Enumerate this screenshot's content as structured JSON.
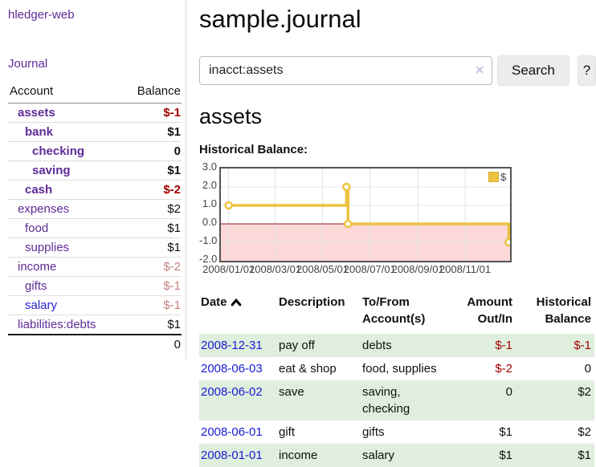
{
  "app": {
    "title": "hledger-web"
  },
  "sidebar": {
    "nav": {
      "journal": "Journal"
    },
    "table": {
      "account_header": "Account",
      "balance_header": "Balance"
    },
    "accounts": [
      {
        "name": "assets",
        "level": 1,
        "bold": true,
        "balance": "$-1",
        "style": "neg"
      },
      {
        "name": "bank",
        "level": 2,
        "bold": true,
        "balance": "$1",
        "style": "plain"
      },
      {
        "name": "checking",
        "level": 3,
        "bold": true,
        "balance": "0",
        "style": "plain"
      },
      {
        "name": "saving",
        "level": 3,
        "bold": true,
        "balance": "$1",
        "style": "plain"
      },
      {
        "name": "cash",
        "level": 2,
        "bold": true,
        "balance": "$-2",
        "style": "neg"
      },
      {
        "name": "expenses",
        "level": 1,
        "bold": false,
        "balance": "$2",
        "style": "plain"
      },
      {
        "name": "food",
        "level": 2,
        "bold": false,
        "balance": "$1",
        "style": "plain"
      },
      {
        "name": "supplies",
        "level": 2,
        "bold": false,
        "balance": "$1",
        "style": "plain"
      },
      {
        "name": "income",
        "level": 1,
        "bold": false,
        "balance": "$-2",
        "style": "rose"
      },
      {
        "name": "gifts",
        "level": 2,
        "bold": false,
        "balance": "$-1",
        "style": "rose"
      },
      {
        "name": "salary",
        "level": 2,
        "bold": false,
        "blue": true,
        "balance": "$-1",
        "style": "rose"
      },
      {
        "name": "liabilities:debts",
        "level": 1,
        "bold": false,
        "balance": "$1",
        "style": "plain"
      }
    ],
    "total": "0"
  },
  "main": {
    "title": "sample.journal",
    "search": {
      "value": "inacct:assets",
      "clear": "✕",
      "button_label": "Search",
      "help_label": "?"
    },
    "heading": "assets",
    "chart_label": "Historical Balance:"
  },
  "chart_data": {
    "type": "line",
    "title": "Historical Balance:",
    "series": [
      {
        "name": "$",
        "color": "#edc240",
        "steps": true,
        "points": [
          [
            "2008-01-01",
            1
          ],
          [
            "2008-06-01",
            2
          ],
          [
            "2008-06-03",
            0
          ],
          [
            "2008-12-31",
            -1
          ]
        ]
      }
    ],
    "y_ticks": [
      "3.0",
      "2.0",
      "1.0",
      "0.0",
      "-1.0",
      "-2.0"
    ],
    "x_ticks": [
      "2008/01/01",
      "2008/03/01",
      "2008/05/01",
      "2008/07/01",
      "2008/09/01",
      "2008/11/01"
    ],
    "ylim": [
      -2,
      3
    ],
    "xlim": [
      "2007-12-22",
      "2008-12-29"
    ],
    "grid": true,
    "legend": {
      "label": "$",
      "position": "top-right"
    },
    "negative_region_fill": "#fcd8d8",
    "zero_line_color": "#8c1717",
    "gridline_color": "#e3e3e3",
    "border_color": "#545454"
  },
  "transactions": {
    "headers": {
      "date": "Date",
      "description": "Description",
      "accounts": "To/From Account(s)",
      "amount": "Amount Out/In",
      "balance": "Historical Balance"
    },
    "rows": [
      {
        "date": "2008-12-31",
        "description": "pay off",
        "accounts": "debts",
        "amount": "$-1",
        "amount_neg": true,
        "balance": "$-1",
        "balance_neg": true
      },
      {
        "date": "2008-06-03",
        "description": "eat & shop",
        "accounts": "food, supplies",
        "amount": "$-2",
        "amount_neg": true,
        "balance": "0",
        "balance_neg": false
      },
      {
        "date": "2008-06-02",
        "description": "save",
        "accounts": "saving, checking",
        "amount": "0",
        "amount_neg": false,
        "balance": "$2",
        "balance_neg": false
      },
      {
        "date": "2008-06-01",
        "description": "gift",
        "accounts": "gifts",
        "amount": "$1",
        "amount_neg": false,
        "balance": "$2",
        "balance_neg": false
      },
      {
        "date": "2008-01-01",
        "description": "income",
        "accounts": "salary",
        "amount": "$1",
        "amount_neg": false,
        "balance": "$1",
        "balance_neg": false
      }
    ]
  },
  "colors": {
    "link_purple": "#5e2b97",
    "link_blue": "#2222cf",
    "date_blue": "#1a1ad9",
    "negative_red": "#a40000",
    "negative_rose": "#c28080",
    "row_green": "#dfeedd",
    "series_gold": "#edc240"
  }
}
